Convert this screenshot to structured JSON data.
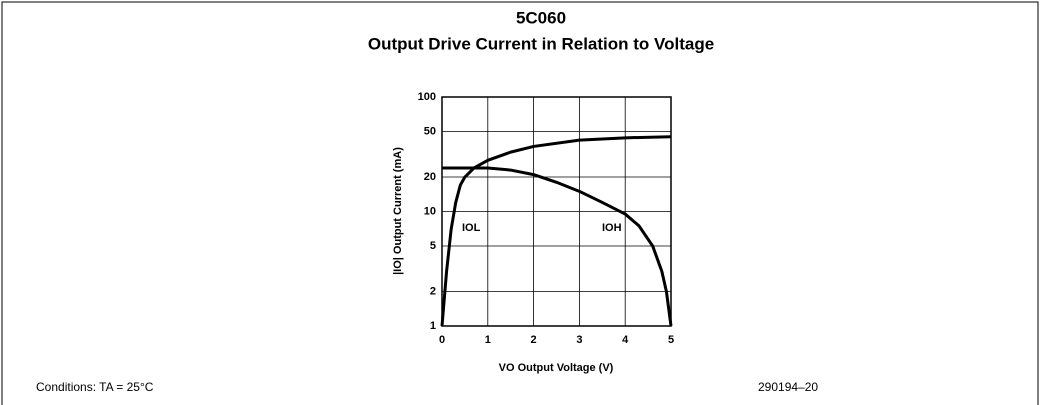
{
  "chart_data": {
    "type": "line",
    "title": "5C060",
    "subtitle": "Output Drive Current in Relation to Voltage",
    "xlabel": "VO Output Voltage (V)",
    "ylabel": "|IO| Output Current (mA)",
    "log_y": true,
    "grid": true,
    "xlim": [
      0,
      5
    ],
    "xticks": [
      0,
      1,
      2,
      3,
      4,
      5
    ],
    "ylim": [
      1,
      100
    ],
    "yticks": [
      1,
      2,
      5,
      10,
      20,
      50,
      100
    ],
    "series": [
      {
        "name": "IOL",
        "color": "#000000",
        "x": [
          0,
          0.1,
          0.2,
          0.3,
          0.4,
          0.5,
          0.7,
          1,
          1.5,
          2,
          3,
          4,
          5
        ],
        "values": [
          1,
          3,
          7,
          12,
          17,
          20,
          24,
          28,
          33,
          37,
          42,
          44,
          45
        ]
      },
      {
        "name": "IOH",
        "color": "#000000",
        "x": [
          0,
          1,
          1.5,
          2,
          2.5,
          3,
          3.5,
          4,
          4.3,
          4.6,
          4.8,
          4.9,
          5
        ],
        "values": [
          24,
          24,
          23,
          21,
          18,
          15,
          12,
          9.5,
          7.5,
          5,
          3,
          2,
          1
        ]
      }
    ],
    "annotations": [
      "Conditions: TA = 25°C",
      "290194–20"
    ]
  }
}
